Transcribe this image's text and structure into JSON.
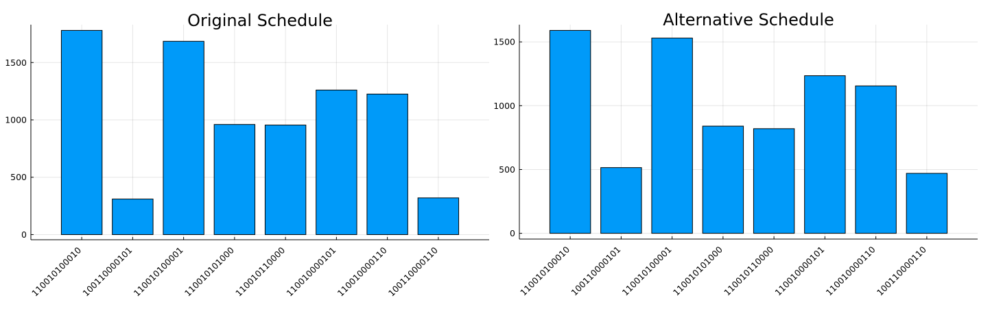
{
  "bar_color": "#009af9",
  "chart_data": [
    {
      "type": "bar",
      "title": "Original Schedule",
      "categories": [
        "110010100010",
        "100110000101",
        "110010100001",
        "110010101000",
        "110010110000",
        "110010000101",
        "110010000110",
        "100110000110"
      ],
      "values": [
        1780,
        310,
        1685,
        960,
        955,
        1260,
        1225,
        320
      ],
      "ylim": [
        -45,
        1830
      ],
      "yticks": [
        0,
        500,
        1000,
        1500
      ],
      "xlabel": "",
      "ylabel": "",
      "grid": true,
      "legend": "none"
    },
    {
      "type": "bar",
      "title": "Alternative Schedule",
      "categories": [
        "110010100010",
        "100110000101",
        "110010100001",
        "110010101000",
        "110010110000",
        "110010000101",
        "110010000110",
        "100110000110"
      ],
      "values": [
        1590,
        515,
        1530,
        840,
        820,
        1235,
        1155,
        470
      ],
      "ylim": [
        -45,
        1635
      ],
      "yticks": [
        0,
        500,
        1000,
        1500
      ],
      "xlabel": "",
      "ylabel": "",
      "grid": true,
      "legend": "none"
    }
  ]
}
